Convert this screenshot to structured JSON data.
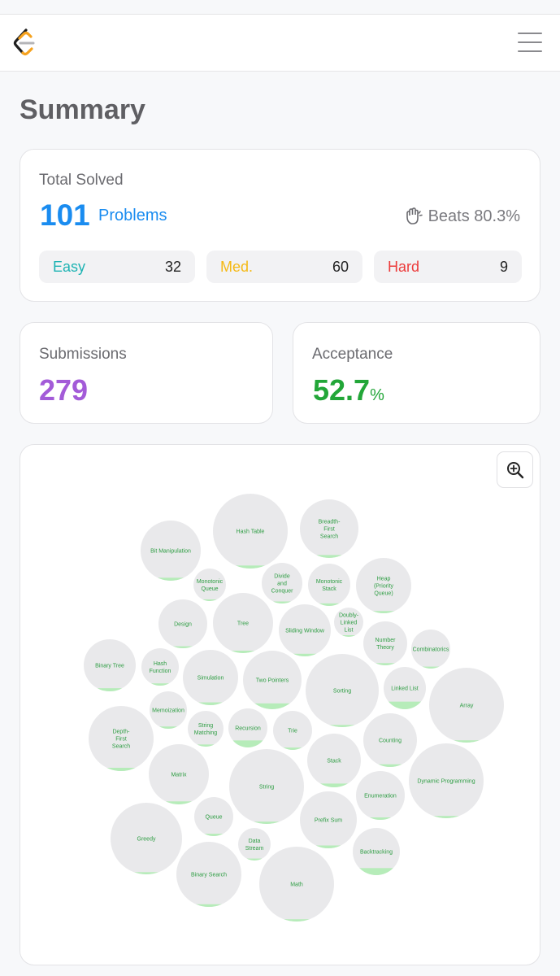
{
  "header": {
    "logo": "leetcode-logo-icon",
    "menu_icon": "hamburger-menu-icon"
  },
  "page": {
    "title": "Summary"
  },
  "total": {
    "label": "Total Solved",
    "count": "101",
    "unit": "Problems",
    "beats_icon": "clapping-hands-icon",
    "beats": "Beats 80.3%",
    "difficulties": [
      {
        "name": "Easy",
        "count": "32",
        "color": "#1eb3b3"
      },
      {
        "name": "Med.",
        "count": "60",
        "color": "#f5b915"
      },
      {
        "name": "Hard",
        "count": "9",
        "color": "#ec3b3b"
      }
    ]
  },
  "submissions": {
    "label": "Submissions",
    "value": "279"
  },
  "acceptance": {
    "label": "Acceptance",
    "value": "52.7",
    "unit": "%"
  },
  "bubbles": {
    "zoom_icon": "zoom-in-icon",
    "items": [
      {
        "label": "Hash Table",
        "fill": 0.04
      },
      {
        "label": "Breadth-First Search",
        "fill": 0.05
      },
      {
        "label": "Bit Manipulation",
        "fill": 0.05
      },
      {
        "label": "Monotonic Queue",
        "fill": 0.05
      },
      {
        "label": "Divide and Conquer",
        "fill": 0.05
      },
      {
        "label": "Monotonic Stack",
        "fill": 0.06
      },
      {
        "label": "Heap (Priority Queue)",
        "fill": 0.04
      },
      {
        "label": "Design",
        "fill": 0.04
      },
      {
        "label": "Tree",
        "fill": 0.04
      },
      {
        "label": "Sliding Window",
        "fill": 0.05
      },
      {
        "label": "Doubly-Linked List",
        "fill": 0.05
      },
      {
        "label": "Number Theory",
        "fill": 0.05
      },
      {
        "label": "Combinatorics",
        "fill": 0.05
      },
      {
        "label": "Binary Tree",
        "fill": 0.06
      },
      {
        "label": "Hash Function",
        "fill": 0.06
      },
      {
        "label": "Simulation",
        "fill": 0.05
      },
      {
        "label": "Two Pointers",
        "fill": 0.1
      },
      {
        "label": "Sorting",
        "fill": 0.03
      },
      {
        "label": "Linked List",
        "fill": 0.18
      },
      {
        "label": "Array",
        "fill": 0.03
      },
      {
        "label": "Memoization",
        "fill": 0.06
      },
      {
        "label": "Depth-First Search",
        "fill": 0.05
      },
      {
        "label": "String Matching",
        "fill": 0.06
      },
      {
        "label": "Recursion",
        "fill": 0.18
      },
      {
        "label": "Trie",
        "fill": 0.06
      },
      {
        "label": "Counting",
        "fill": 0.05
      },
      {
        "label": "Matrix",
        "fill": 0.05
      },
      {
        "label": "String",
        "fill": 0.03
      },
      {
        "label": "Stack",
        "fill": 0.07
      },
      {
        "label": "Dynamic Programming",
        "fill": 0.03
      },
      {
        "label": "Enumeration",
        "fill": 0.05
      },
      {
        "label": "Queue",
        "fill": 0.06
      },
      {
        "label": "Greedy",
        "fill": 0.03
      },
      {
        "label": "Prefix Sum",
        "fill": 0.05
      },
      {
        "label": "Backtracking",
        "fill": 0.15
      },
      {
        "label": "Data Stream",
        "fill": 0.06
      },
      {
        "label": "Binary Search",
        "fill": 0.04
      },
      {
        "label": "Math",
        "fill": 0.03
      }
    ]
  }
}
